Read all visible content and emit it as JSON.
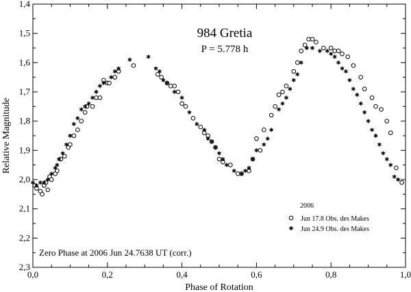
{
  "chart_data": {
    "type": "scatter",
    "title": "984 Gretia",
    "subtitle": "P = 5.778 h",
    "xlabel": "Phase of Rotation",
    "ylabel": "Relative Magnitude",
    "xlim": [
      0.0,
      1.0
    ],
    "ylim": [
      2.3,
      1.4
    ],
    "y_inverted": true,
    "x_ticks": [
      "0,0",
      "0,2",
      "0,4",
      "0,6",
      "0,8",
      "1,0"
    ],
    "y_ticks": [
      "1,4",
      "1,5",
      "1,6",
      "1,7",
      "1,8",
      "1,9",
      "2,0",
      "2,1",
      "2,2",
      "2,3"
    ],
    "legend_title": "2006",
    "legend_placement": "bottom-right",
    "annotation": "Zero Phase at 2006 Jun 24.7638 UT (corr.)",
    "grid": false,
    "series": [
      {
        "name": "Jun 17.8 Obs. des Makes",
        "marker": "open-circle",
        "x": [
          0.005,
          0.01,
          0.02,
          0.025,
          0.03,
          0.035,
          0.04,
          0.045,
          0.05,
          0.06,
          0.065,
          0.075,
          0.085,
          0.095,
          0.1,
          0.11,
          0.12,
          0.13,
          0.14,
          0.145,
          0.16,
          0.17,
          0.18,
          0.19,
          0.2,
          0.205,
          0.22,
          0.23,
          0.27,
          0.335,
          0.345,
          0.36,
          0.37,
          0.38,
          0.39,
          0.4,
          0.41,
          0.43,
          0.45,
          0.46,
          0.47,
          0.48,
          0.49,
          0.5,
          0.51,
          0.53,
          0.55,
          0.56,
          0.58,
          0.59,
          0.6,
          0.61,
          0.62,
          0.64,
          0.65,
          0.66,
          0.67,
          0.68,
          0.7,
          0.71,
          0.72,
          0.73,
          0.74,
          0.75,
          0.76,
          0.78,
          0.8,
          0.81,
          0.82,
          0.83,
          0.845,
          0.86,
          0.88,
          0.89,
          0.91,
          0.92,
          0.935,
          0.95,
          0.96,
          0.975,
          0.99
        ],
        "y": [
          2.02,
          2.03,
          2.04,
          2.05,
          2.02,
          2.01,
          2.035,
          1.99,
          2.0,
          1.98,
          1.97,
          1.93,
          1.92,
          1.89,
          1.88,
          1.85,
          1.83,
          1.8,
          1.77,
          1.75,
          1.75,
          1.72,
          1.72,
          1.66,
          1.67,
          1.67,
          1.65,
          1.63,
          1.61,
          1.64,
          1.65,
          1.67,
          1.68,
          1.68,
          1.7,
          1.74,
          1.75,
          1.79,
          1.82,
          1.84,
          1.85,
          1.87,
          1.89,
          1.93,
          1.94,
          1.95,
          1.98,
          1.98,
          1.97,
          1.93,
          1.86,
          1.9,
          1.83,
          1.78,
          1.75,
          1.71,
          1.7,
          1.68,
          1.63,
          1.6,
          1.56,
          1.54,
          1.52,
          1.52,
          1.53,
          1.55,
          1.55,
          1.56,
          1.56,
          1.57,
          1.58,
          1.61,
          1.65,
          1.69,
          1.72,
          1.75,
          1.76,
          1.8,
          1.84,
          1.96,
          2.01
        ]
      },
      {
        "name": "Jun 24.9 Obs. des Makes",
        "marker": "asterisk",
        "x": [
          0.0,
          0.01,
          0.02,
          0.03,
          0.04,
          0.05,
          0.06,
          0.065,
          0.07,
          0.08,
          0.09,
          0.1,
          0.11,
          0.12,
          0.13,
          0.14,
          0.15,
          0.16,
          0.17,
          0.18,
          0.19,
          0.21,
          0.22,
          0.23,
          0.26,
          0.31,
          0.33,
          0.34,
          0.35,
          0.36,
          0.38,
          0.4,
          0.42,
          0.44,
          0.46,
          0.47,
          0.48,
          0.49,
          0.5,
          0.51,
          0.52,
          0.54,
          0.56,
          0.57,
          0.58,
          0.59,
          0.6,
          0.62,
          0.63,
          0.64,
          0.66,
          0.67,
          0.68,
          0.69,
          0.7,
          0.71,
          0.72,
          0.735,
          0.75,
          0.77,
          0.79,
          0.8,
          0.81,
          0.82,
          0.83,
          0.84,
          0.85,
          0.86,
          0.87,
          0.88,
          0.89,
          0.9,
          0.91,
          0.92,
          0.93,
          0.94,
          0.95,
          0.96,
          0.97,
          0.98
        ],
        "y": [
          2.01,
          2.02,
          2.01,
          2.01,
          2.0,
          1.98,
          1.96,
          1.95,
          1.93,
          1.91,
          1.88,
          1.85,
          1.81,
          1.79,
          1.76,
          1.75,
          1.74,
          1.72,
          1.7,
          1.68,
          1.67,
          1.65,
          1.63,
          1.62,
          1.59,
          1.58,
          1.62,
          1.63,
          1.66,
          1.67,
          1.7,
          1.72,
          1.77,
          1.81,
          1.83,
          1.86,
          1.87,
          1.89,
          1.91,
          1.93,
          1.95,
          1.97,
          1.98,
          1.97,
          1.96,
          1.93,
          1.9,
          1.88,
          1.86,
          1.83,
          1.76,
          1.74,
          1.72,
          1.69,
          1.66,
          1.64,
          1.6,
          1.55,
          1.55,
          1.56,
          1.56,
          1.57,
          1.58,
          1.6,
          1.62,
          1.63,
          1.66,
          1.69,
          1.71,
          1.74,
          1.77,
          1.8,
          1.83,
          1.85,
          1.88,
          1.91,
          1.93,
          1.95,
          1.99,
          2.0
        ]
      }
    ]
  }
}
